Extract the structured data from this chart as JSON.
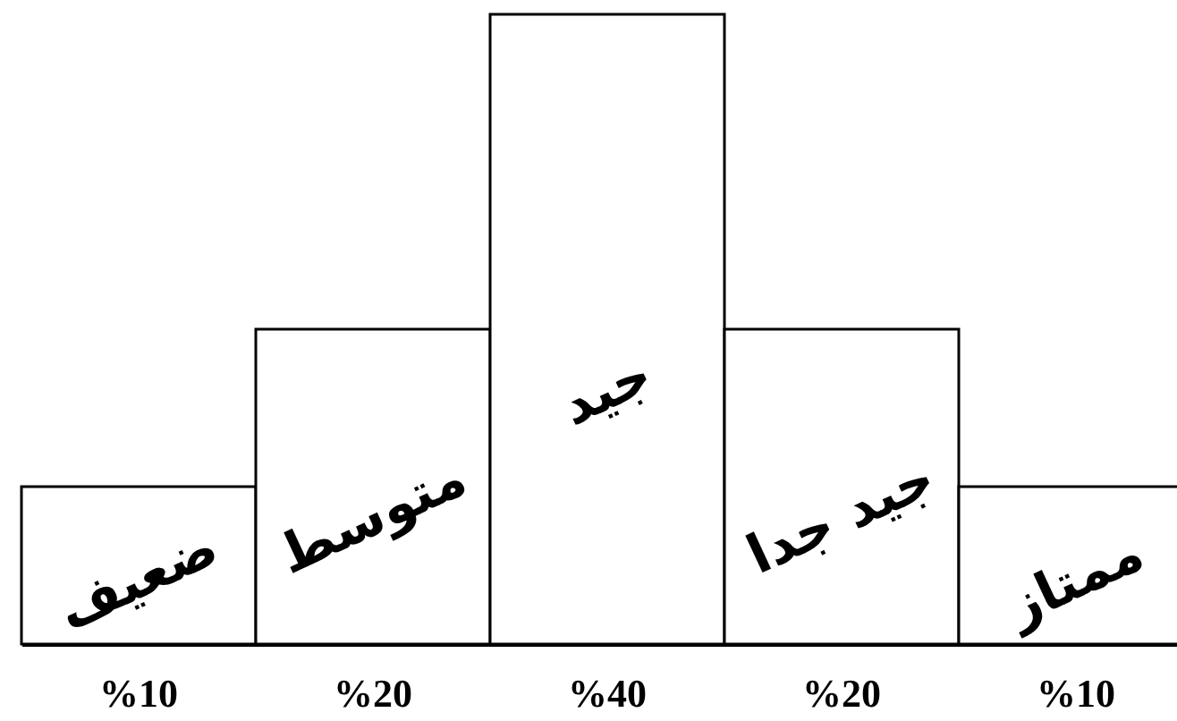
{
  "chart_data": {
    "type": "bar",
    "categories": [
      "ضعيف",
      "متوسط",
      "جيد",
      "جيد جدا",
      "ممتاز"
    ],
    "values": [
      10,
      20,
      40,
      20,
      10
    ],
    "color": "#ffffff",
    "value_labels": [
      "%10",
      "%20",
      "%40",
      "%20",
      "%10"
    ]
  }
}
